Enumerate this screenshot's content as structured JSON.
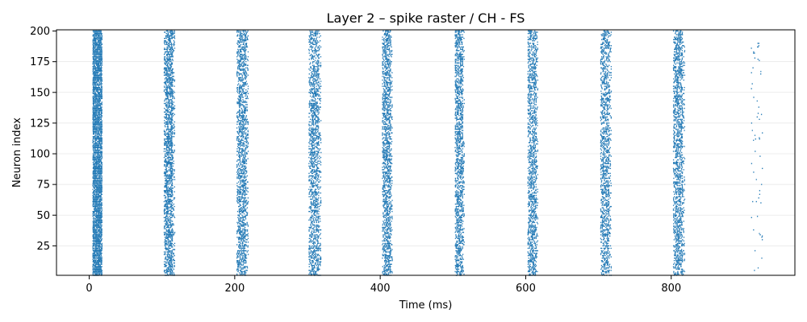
{
  "chart_data": {
    "type": "scatter",
    "title": "Layer 2 – spike raster / CH - FS",
    "xlabel": "Time (ms)",
    "ylabel": "Neuron index",
    "xlim": [
      -45,
      970
    ],
    "ylim": [
      1,
      201
    ],
    "x_ticks": [
      0,
      200,
      400,
      600,
      800
    ],
    "y_ticks": [
      25,
      50,
      75,
      100,
      125,
      150,
      175,
      200
    ],
    "grid": "y-only",
    "marker": "vertical-line",
    "color": "#1f77b4",
    "neuron_count": 200,
    "bursts": [
      {
        "start_ms": 5,
        "end_ms": 17,
        "density": 0.82
      },
      {
        "start_ms": 103,
        "end_ms": 117,
        "density": 0.6
      },
      {
        "start_ms": 203,
        "end_ms": 218,
        "density": 0.5
      },
      {
        "start_ms": 302,
        "end_ms": 318,
        "density": 0.45
      },
      {
        "start_ms": 403,
        "end_ms": 416,
        "density": 0.5
      },
      {
        "start_ms": 503,
        "end_ms": 515,
        "density": 0.5
      },
      {
        "start_ms": 603,
        "end_ms": 616,
        "density": 0.45
      },
      {
        "start_ms": 703,
        "end_ms": 717,
        "density": 0.45
      },
      {
        "start_ms": 803,
        "end_ms": 818,
        "density": 0.45
      },
      {
        "start_ms": 910,
        "end_ms": 925,
        "density": 0.015
      }
    ]
  }
}
